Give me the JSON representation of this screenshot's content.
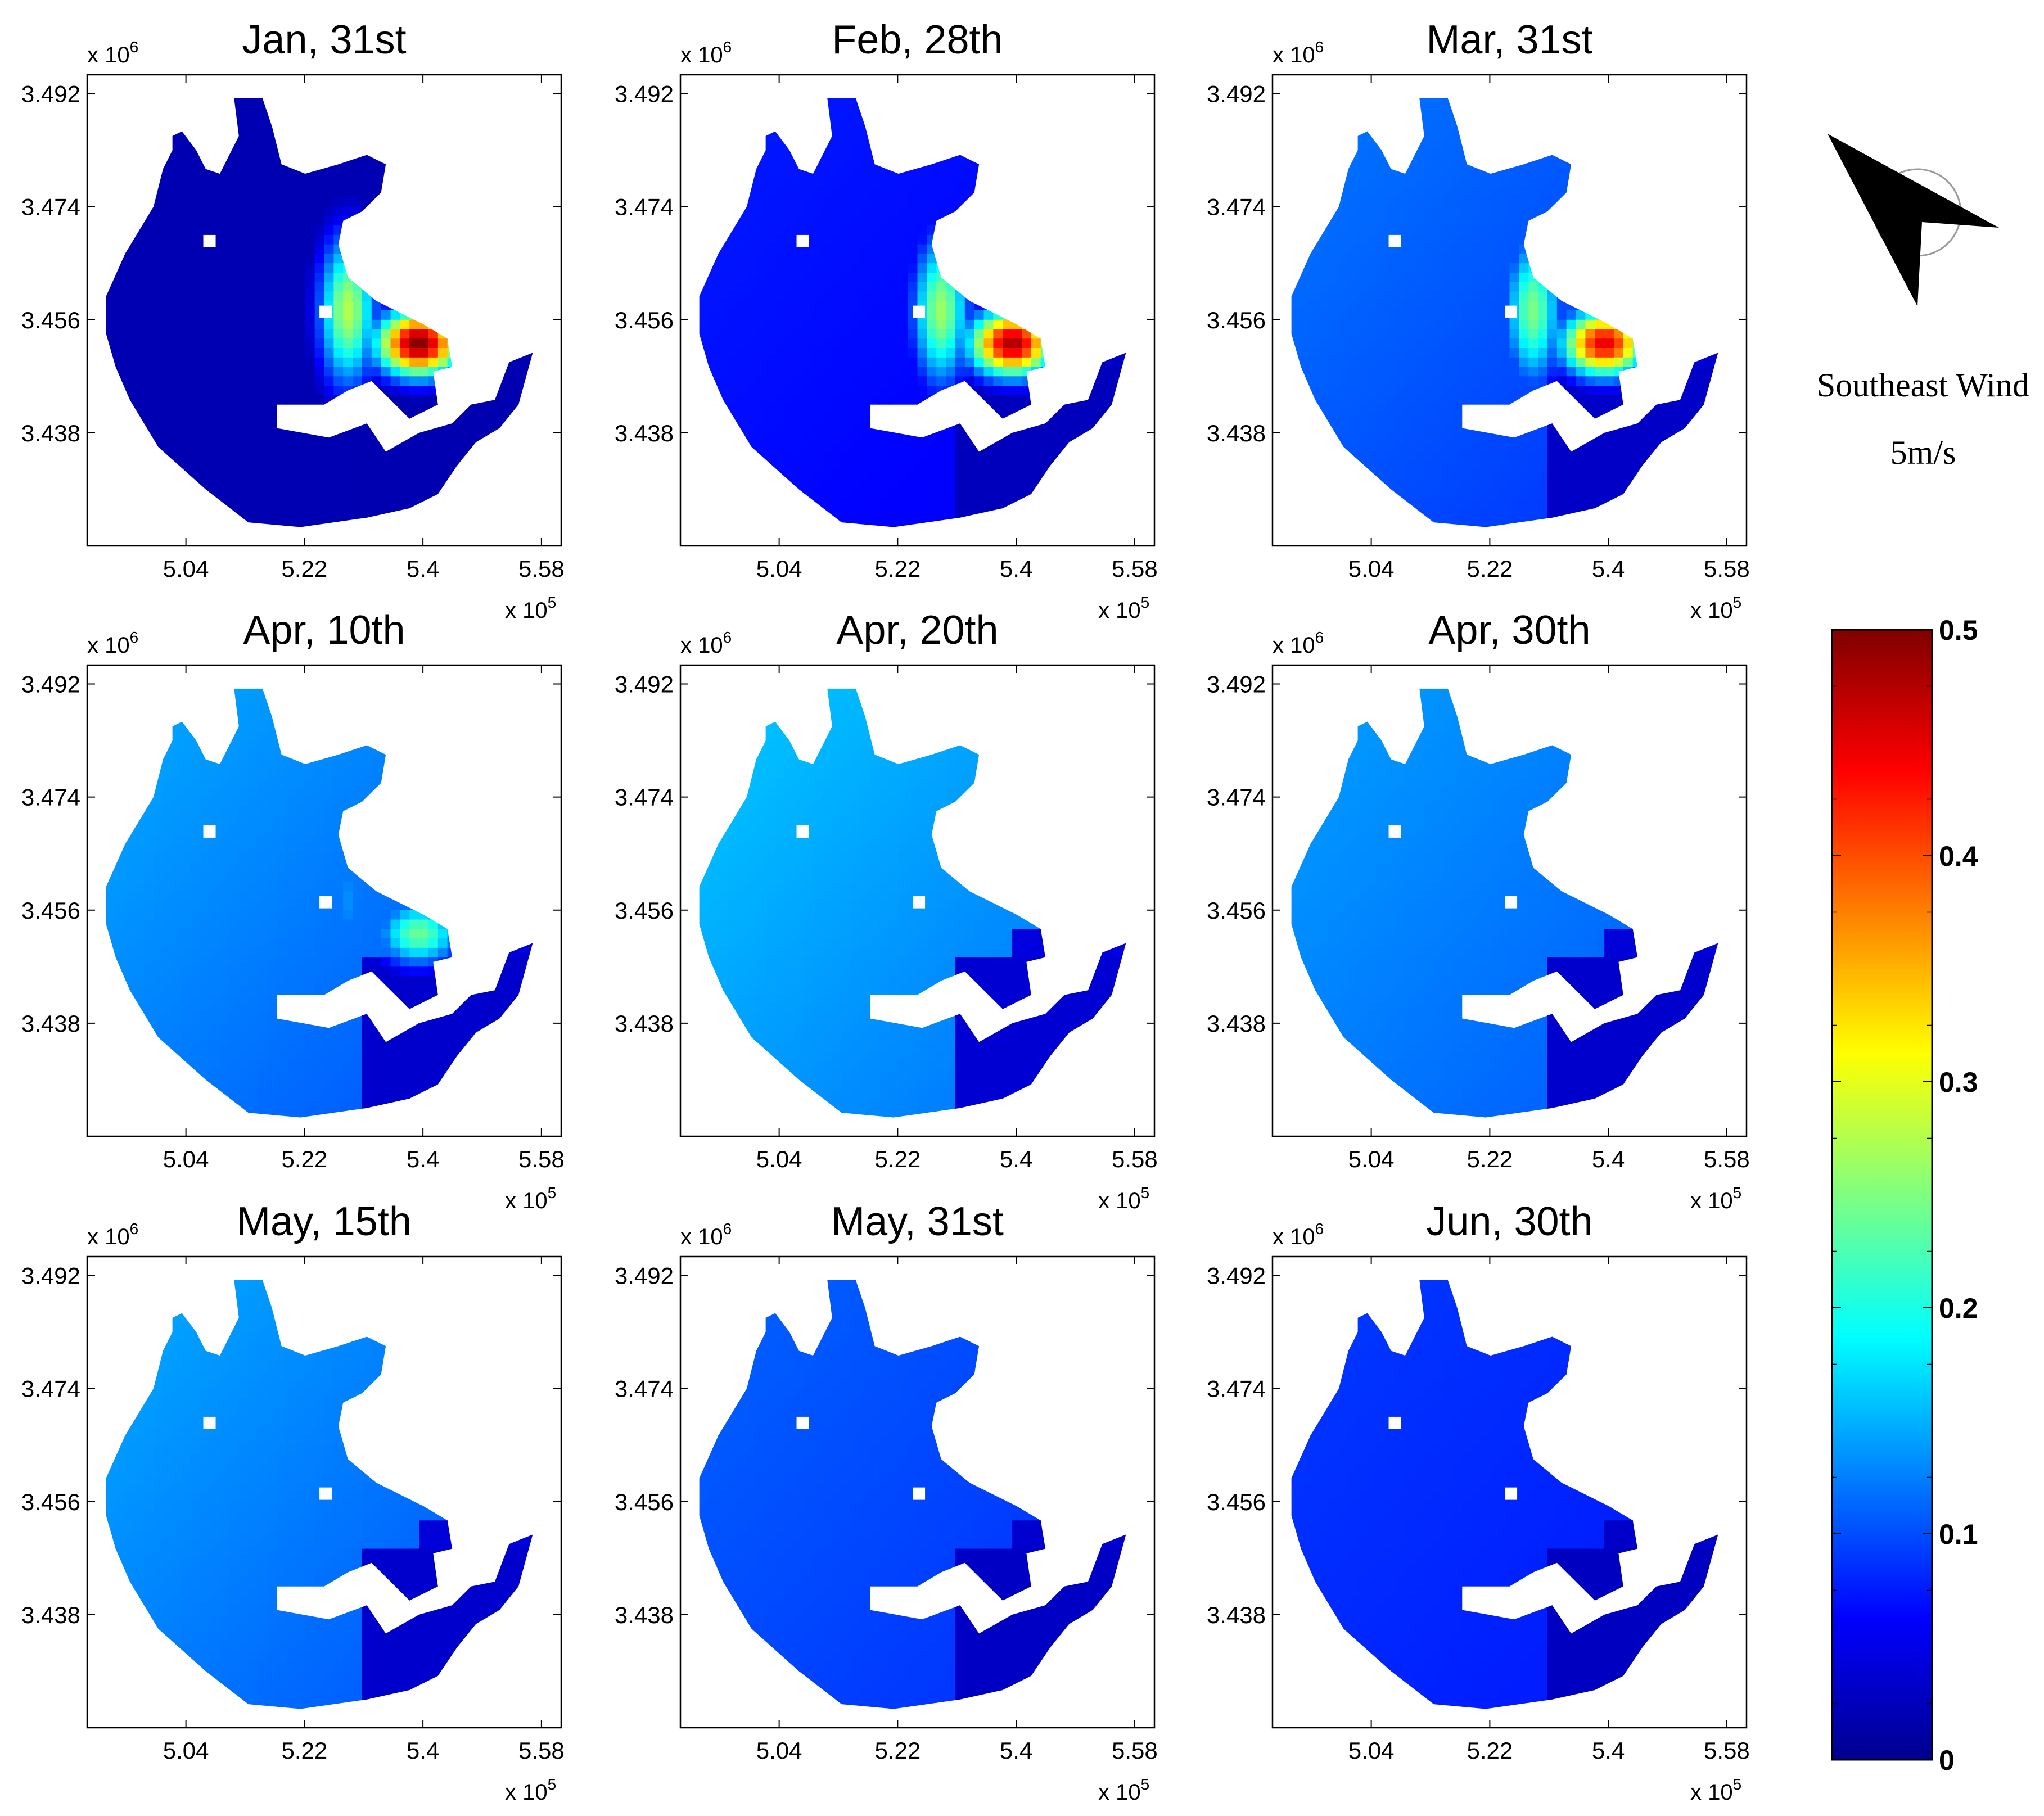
{
  "chart_data": {
    "type": "heatmap",
    "panels": [
      {
        "title": "Jan, 31st",
        "base": 0.025,
        "gradient": 0.0,
        "plume": 0.5
      },
      {
        "title": "Feb, 28th",
        "base": 0.065,
        "gradient": 0.02,
        "plume": 0.48
      },
      {
        "title": "Mar, 31st",
        "base": 0.1,
        "gradient": 0.04,
        "plume": 0.45
      },
      {
        "title": "Apr, 10th",
        "base": 0.12,
        "gradient": 0.05,
        "plume": 0.24
      },
      {
        "title": "Apr, 20th",
        "base": 0.135,
        "gradient": 0.05,
        "plume": 0.0
      },
      {
        "title": "Apr, 30th",
        "base": 0.12,
        "gradient": 0.04,
        "plume": 0.0
      },
      {
        "title": "May, 15th",
        "base": 0.12,
        "gradient": 0.05,
        "plume": 0.0
      },
      {
        "title": "May, 31st",
        "base": 0.095,
        "gradient": 0.03,
        "plume": 0.0
      },
      {
        "title": "Jun, 30th",
        "base": 0.08,
        "gradient": 0.02,
        "plume": 0.0
      }
    ],
    "xaxis": {
      "ticks": [
        "5.04",
        "5.22",
        "5.4",
        "5.58"
      ],
      "tick_values": [
        5.04,
        5.22,
        5.4,
        5.58
      ],
      "range": [
        4.89,
        5.61
      ],
      "multiplier": "x 10",
      "exponent": "5"
    },
    "yaxis": {
      "ticks": [
        "3.492",
        "3.474",
        "3.456",
        "3.438"
      ],
      "tick_values": [
        3.492,
        3.474,
        3.456,
        3.438
      ],
      "range": [
        3.42,
        3.495
      ],
      "multiplier": "x 10",
      "exponent": "6"
    },
    "colorbar": {
      "min": 0,
      "max": 0.5,
      "ticks": [
        "0",
        "0.1",
        "0.2",
        "0.3",
        "0.4",
        "0.5"
      ],
      "tick_values": [
        0,
        0.1,
        0.2,
        0.3,
        0.4,
        0.5
      ],
      "colormap": "jet"
    },
    "wind": {
      "label": "Southeast Wind",
      "speed": "5m/s"
    }
  }
}
